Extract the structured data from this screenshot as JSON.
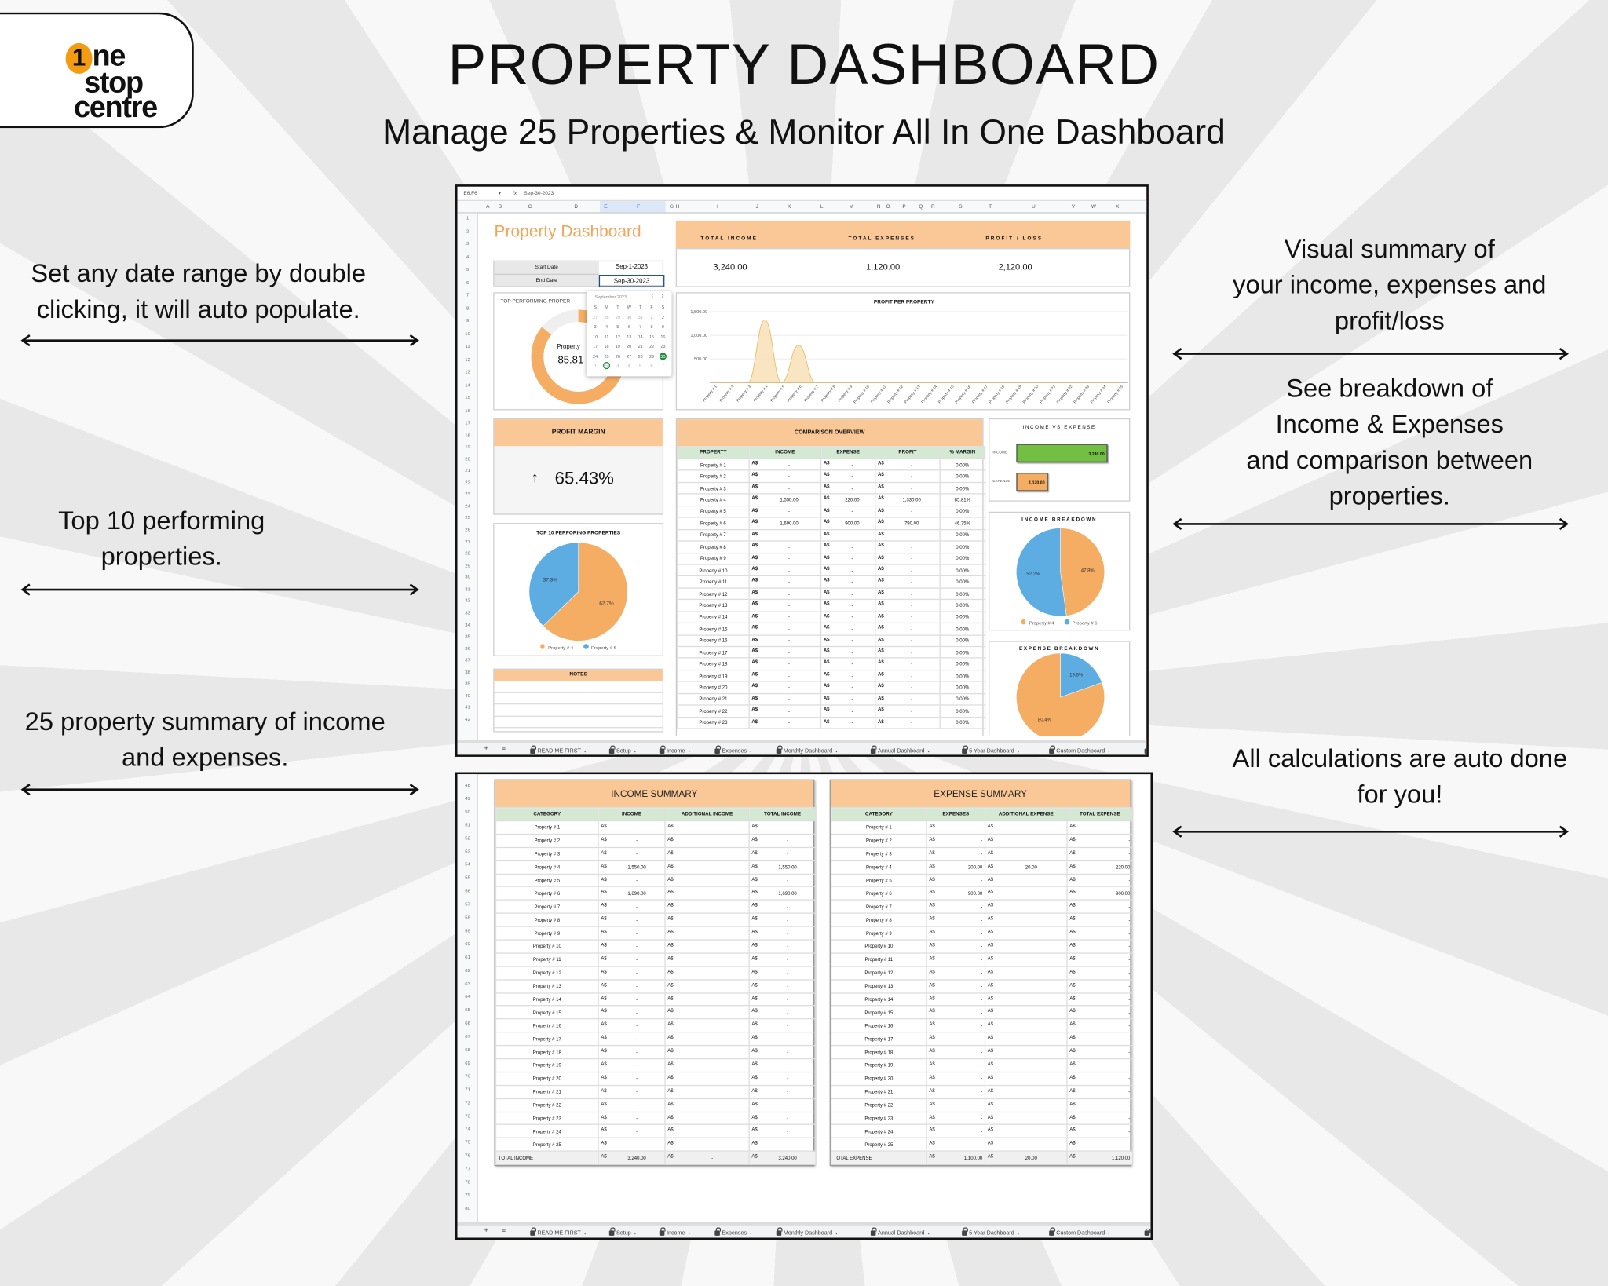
{
  "logo": {
    "one": "1",
    "ne": "ne",
    "stop": "stop",
    "centre": "centre"
  },
  "header": {
    "title": "PROPERTY DASHBOARD",
    "subtitle": "Manage 25 Properties & Monitor All In One Dashboard"
  },
  "annotations": {
    "date_range": [
      "Set any date range by double",
      "clicking, it will auto populate."
    ],
    "top10": [
      "Top 10 performing",
      "properties."
    ],
    "summary": [
      "25 property summary of income",
      "and expenses."
    ],
    "visual": [
      "Visual summary of",
      "your income, expenses and",
      "profit/loss"
    ],
    "breakdown": [
      "See breakdown of",
      "Income & Expenses",
      "and comparison between",
      "properties."
    ],
    "auto": [
      "All calculations are auto done",
      "for you!"
    ]
  },
  "colors": {
    "orange_header": "#f9c896",
    "green_header": "#d5e8d4",
    "pie_orange": "#f4ad63",
    "pie_blue": "#5dade2",
    "income_bar": "#72bf44",
    "title_orange": "#f2a65a",
    "selected_day": "#1e8e3e"
  },
  "tabs": [
    "READ ME FIRST",
    "Setup",
    "Income",
    "Expenses",
    "Monthly Dashboard",
    "Annual Dashboard",
    "5 Year Dashboard",
    "Custom Dashboard"
  ],
  "tabbar": {
    "add": "+",
    "menu": "≡"
  },
  "dashboard": {
    "formula_bar": {
      "cell_ref": "E6:F6",
      "fx": "fx",
      "value": "Sep-30-2023"
    },
    "columns": [
      "A",
      "B",
      "C",
      "D",
      "E",
      "F",
      "G",
      "H",
      "I",
      "J",
      "K",
      "L",
      "M",
      "N",
      "O",
      "P",
      "Q",
      "R",
      "S",
      "T",
      "U",
      "V",
      "W",
      "X"
    ],
    "row_numbers": [
      1,
      2,
      3,
      4,
      5,
      6,
      7,
      8,
      9,
      10,
      11,
      12,
      13,
      14,
      15,
      16,
      17,
      18,
      19,
      20,
      21,
      22,
      23,
      24,
      25,
      26,
      27,
      28,
      29,
      30,
      31,
      32,
      33,
      34,
      35,
      36,
      37,
      38,
      39,
      40,
      41,
      42
    ],
    "title": "Property Dashboard",
    "dates": {
      "start_label": "Start Date",
      "start_value": "Sep-1-2023",
      "end_label": "End Date",
      "end_value": "Sep-30-2023"
    },
    "kpis": [
      {
        "label": "TOTAL INCOME",
        "value": "3,240.00"
      },
      {
        "label": "TOTAL EXPENSES",
        "value": "1,120.00"
      },
      {
        "label": "PROFIT / LOSS",
        "value": "2,120.00"
      }
    ],
    "top_performing": {
      "title": "TOP PERFORMING PROPER",
      "property": "Property",
      "value": "85.81",
      "share": 85.81
    },
    "calendar": {
      "month": "September 2023",
      "prev": "‹",
      "next": "›",
      "weekdays": [
        "S",
        "M",
        "T",
        "W",
        "T",
        "F",
        "S"
      ],
      "weeks": [
        [
          "27",
          "28",
          "29",
          "30",
          "31",
          "1",
          "2"
        ],
        [
          "3",
          "4",
          "5",
          "6",
          "7",
          "8",
          "9"
        ],
        [
          "10",
          "11",
          "12",
          "13",
          "14",
          "15",
          "16"
        ],
        [
          "17",
          "18",
          "19",
          "20",
          "21",
          "22",
          "23"
        ],
        [
          "24",
          "25",
          "26",
          "27",
          "28",
          "29",
          "30"
        ],
        [
          "1",
          "2",
          "3",
          "4",
          "5",
          "6",
          "7"
        ]
      ],
      "selected": "30",
      "today": "2"
    },
    "profit_margin": {
      "title": "PROFIT MARGIN",
      "arrow": "↑",
      "value": "65.43%"
    },
    "notes": {
      "title": "NOTES"
    },
    "comparison": {
      "title": "COMPARISON OVERVIEW",
      "headers": [
        "PROPERTY",
        "INCOME",
        "EXPENSE",
        "PROFIT",
        "% MARGIN"
      ],
      "currency": "A$",
      "rows": [
        [
          "Property # 1",
          "-",
          "-",
          "-",
          "0.00%"
        ],
        [
          "Property # 2",
          "-",
          "-",
          "-",
          "0.00%"
        ],
        [
          "Property # 3",
          "-",
          "-",
          "-",
          "0.00%"
        ],
        [
          "Property # 4",
          "1,550.00",
          "220.00",
          "1,330.00",
          "85.81%"
        ],
        [
          "Property # 5",
          "-",
          "-",
          "-",
          "0.00%"
        ],
        [
          "Property # 6",
          "1,690.00",
          "900.00",
          "790.00",
          "46.75%"
        ],
        [
          "Property # 7",
          "-",
          "-",
          "-",
          "0.00%"
        ],
        [
          "Property # 8",
          "-",
          "-",
          "-",
          "0.00%"
        ],
        [
          "Property # 9",
          "-",
          "-",
          "-",
          "0.00%"
        ],
        [
          "Property # 10",
          "-",
          "-",
          "-",
          "0.00%"
        ],
        [
          "Property # 11",
          "-",
          "-",
          "-",
          "0.00%"
        ],
        [
          "Property # 12",
          "-",
          "-",
          "-",
          "0.00%"
        ],
        [
          "Property # 13",
          "-",
          "-",
          "-",
          "0.00%"
        ],
        [
          "Property # 14",
          "-",
          "-",
          "-",
          "0.00%"
        ],
        [
          "Property # 15",
          "-",
          "-",
          "-",
          "0.00%"
        ],
        [
          "Property # 16",
          "-",
          "-",
          "-",
          "0.00%"
        ],
        [
          "Property # 17",
          "-",
          "-",
          "-",
          "0.00%"
        ],
        [
          "Property # 18",
          "-",
          "-",
          "-",
          "0.00%"
        ],
        [
          "Property # 19",
          "-",
          "-",
          "-",
          "0.00%"
        ],
        [
          "Property # 20",
          "-",
          "-",
          "-",
          "0.00%"
        ],
        [
          "Property # 21",
          "-",
          "-",
          "-",
          "0.00%"
        ],
        [
          "Property # 22",
          "-",
          "-",
          "-",
          "0.00%"
        ],
        [
          "Property # 23",
          "-",
          "-",
          "-",
          "0.00%"
        ]
      ]
    }
  },
  "summary": {
    "row_numbers": [
      48,
      49,
      50,
      51,
      52,
      53,
      54,
      55,
      56,
      57,
      58,
      59,
      60,
      61,
      62,
      63,
      64,
      65,
      66,
      67,
      68,
      69,
      70,
      71,
      72,
      73,
      74,
      75,
      76,
      77,
      78,
      79,
      80
    ],
    "currency": "A$",
    "income": {
      "title": "INCOME SUMMARY",
      "headers": [
        "CATEGORY",
        "INCOME",
        "ADDITIONAL INCOME",
        "TOTAL INCOME"
      ],
      "rows": [
        [
          "Property # 1",
          "-",
          "",
          "-"
        ],
        [
          "Property # 2",
          "-",
          "",
          "-"
        ],
        [
          "Property # 3",
          "-",
          "",
          "-"
        ],
        [
          "Property # 4",
          "1,550.00",
          "",
          "1,550.00"
        ],
        [
          "Property # 5",
          "-",
          "",
          "-"
        ],
        [
          "Property # 6",
          "1,690.00",
          "",
          "1,690.00"
        ],
        [
          "Property # 7",
          "-",
          "",
          "-"
        ],
        [
          "Property # 8",
          "-",
          "",
          "-"
        ],
        [
          "Property # 9",
          "-",
          "",
          "-"
        ],
        [
          "Property # 10",
          "-",
          "",
          "-"
        ],
        [
          "Property # 11",
          "-",
          "",
          "-"
        ],
        [
          "Property # 12",
          "-",
          "",
          "-"
        ],
        [
          "Property # 13",
          "-",
          "",
          "-"
        ],
        [
          "Property # 14",
          "-",
          "",
          "-"
        ],
        [
          "Property # 15",
          "-",
          "",
          "-"
        ],
        [
          "Property # 16",
          "-",
          "",
          "-"
        ],
        [
          "Property # 17",
          "-",
          "",
          "-"
        ],
        [
          "Property # 18",
          "-",
          "",
          "-"
        ],
        [
          "Property # 19",
          "-",
          "",
          "-"
        ],
        [
          "Property # 20",
          "-",
          "",
          "-"
        ],
        [
          "Property # 21",
          "-",
          "",
          "-"
        ],
        [
          "Property # 22",
          "-",
          "",
          "-"
        ],
        [
          "Property # 23",
          "-",
          "",
          "-"
        ],
        [
          "Property # 24",
          "-",
          "",
          "-"
        ],
        [
          "Property # 25",
          "-",
          "",
          "-"
        ]
      ],
      "total": [
        "TOTAL INCOME",
        "3,240.00",
        "-",
        "3,240.00"
      ]
    },
    "expense": {
      "title": "EXPENSE SUMMARY",
      "headers": [
        "CATEGORY",
        "EXPENSES",
        "ADDITIONAL EXPENSE",
        "TOTAL EXPENSE"
      ],
      "rows": [
        [
          "Property # 1",
          "-",
          "",
          "-"
        ],
        [
          "Property # 2",
          "-",
          "",
          "-"
        ],
        [
          "Property # 3",
          "-",
          "",
          "-"
        ],
        [
          "Property # 4",
          "200.00",
          "20.00",
          "220.00"
        ],
        [
          "Property # 5",
          "-",
          "",
          "-"
        ],
        [
          "Property # 6",
          "900.00",
          "",
          "900.00"
        ],
        [
          "Property # 7",
          "-",
          "",
          "-"
        ],
        [
          "Property # 8",
          "-",
          "",
          "-"
        ],
        [
          "Property # 9",
          "-",
          "",
          "-"
        ],
        [
          "Property # 10",
          "-",
          "",
          "-"
        ],
        [
          "Property # 11",
          "-",
          "",
          "-"
        ],
        [
          "Property # 12",
          "-",
          "",
          "-"
        ],
        [
          "Property # 13",
          "-",
          "",
          "-"
        ],
        [
          "Property # 14",
          "-",
          "",
          "-"
        ],
        [
          "Property # 15",
          "-",
          "",
          "-"
        ],
        [
          "Property # 16",
          "-",
          "",
          "-"
        ],
        [
          "Property # 17",
          "-",
          "",
          "-"
        ],
        [
          "Property # 18",
          "-",
          "",
          "-"
        ],
        [
          "Property # 19",
          "-",
          "",
          "-"
        ],
        [
          "Property # 20",
          "-",
          "",
          "-"
        ],
        [
          "Property # 21",
          "-",
          "",
          "-"
        ],
        [
          "Property # 22",
          "-",
          "",
          "-"
        ],
        [
          "Property # 23",
          "-",
          "",
          "-"
        ],
        [
          "Property # 24",
          "-",
          "",
          "-"
        ],
        [
          "Property # 25",
          "-",
          "",
          "-"
        ]
      ],
      "total": [
        "TOTAL EXPENSE",
        "1,100.00",
        "20.00",
        "1,120.00"
      ]
    }
  },
  "chart_data": [
    {
      "type": "area",
      "title": "PROFIT PER PROPERTY",
      "categories": [
        "Property # 1",
        "Property # 2",
        "Property # 3",
        "Property # 4",
        "Property # 5",
        "Property # 6",
        "Property # 7",
        "Property # 8",
        "Property # 9",
        "Property # 10",
        "Property # 11",
        "Property # 12",
        "Property # 13",
        "Property # 14",
        "Property # 15",
        "Property # 16",
        "Property # 17",
        "Property # 18",
        "Property # 19",
        "Property # 20",
        "Property # 21",
        "Property # 22",
        "Property # 23",
        "Property # 24",
        "Property # 25"
      ],
      "values": [
        0,
        0,
        0,
        1330,
        0,
        790,
        0,
        0,
        0,
        0,
        0,
        0,
        0,
        0,
        0,
        0,
        0,
        0,
        0,
        0,
        0,
        0,
        0,
        0,
        0
      ],
      "yticks": [
        "-",
        "500.00",
        "1,000.00",
        "1,500.00"
      ],
      "ylim": [
        0,
        1500
      ],
      "grid": true
    },
    {
      "type": "pie",
      "title": "TOP 10 PERFORING PROPERTIES",
      "legend": "bottom",
      "slices": [
        {
          "name": "Property # 4",
          "value": 62.7,
          "label": "62.7%",
          "color": "#f4ad63"
        },
        {
          "name": "Property # 6",
          "value": 37.3,
          "label": "37.3%",
          "color": "#5dade2"
        }
      ]
    },
    {
      "type": "bar",
      "title": "INCOME VS EXPENSE",
      "categories": [
        "INCOME",
        "EXPENSE"
      ],
      "values": [
        3240,
        1120
      ],
      "labels": [
        "3,240.00",
        "1,120.00"
      ],
      "colors": [
        "#72bf44",
        "#f4ad63"
      ]
    },
    {
      "type": "pie",
      "title": "INCOME BREAKDOWN",
      "legend": "bottom",
      "slices": [
        {
          "name": "Property # 4",
          "value": 47.8,
          "label": "47.8%",
          "color": "#f4ad63"
        },
        {
          "name": "Property # 6",
          "value": 52.2,
          "label": "52.2%",
          "color": "#5dade2"
        }
      ]
    },
    {
      "type": "pie",
      "title": "EXPENSE BREAKDOWN",
      "slices": [
        {
          "value": 19.6,
          "label": "19.6%",
          "color": "#5dade2"
        },
        {
          "value": 80.4,
          "label": "80.4%",
          "color": "#f4ad63"
        }
      ]
    }
  ]
}
